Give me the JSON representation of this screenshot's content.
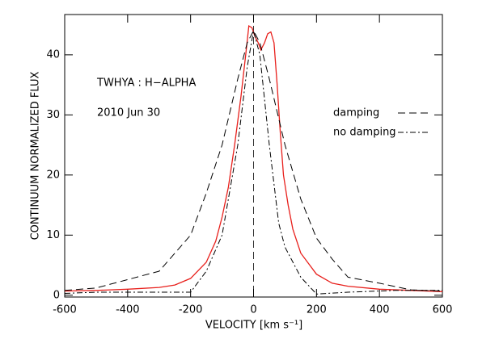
{
  "chart_data": {
    "type": "line",
    "xlabel": "VELOCITY [km s⁻¹]",
    "ylabel": "CONTINUUM NORMALIZED FLUX",
    "annotations": [
      "TWHYA : H−ALPHA",
      "2010 Jun 30"
    ],
    "xlim": [
      -600,
      600
    ],
    "ylim": [
      -0.3,
      46.7
    ],
    "xticks": [
      -600,
      -400,
      -200,
      0,
      200,
      400,
      600
    ],
    "yticks": [
      0,
      10,
      20,
      30,
      40
    ],
    "vlines": [
      0
    ],
    "series": [
      {
        "color": "#e8201c",
        "dash": "solid",
        "x": [
          -600,
          -500,
          -400,
          -300,
          -250,
          -200,
          -150,
          -120,
          -100,
          -80,
          -60,
          -40,
          -25,
          -15,
          -5,
          5,
          15,
          23,
          35,
          45,
          55,
          65,
          75,
          85,
          95,
          110,
          125,
          150,
          200,
          250,
          300,
          400,
          500,
          600
        ],
        "values": [
          0.7,
          0.8,
          1.0,
          1.3,
          1.7,
          2.8,
          5.5,
          9,
          13,
          18,
          25,
          33,
          40,
          44.8,
          44.5,
          43,
          42,
          40.8,
          42,
          43.5,
          43.8,
          42,
          35,
          27,
          20,
          15,
          11,
          7,
          3.5,
          2,
          1.5,
          1,
          0.8,
          0.6
        ]
      },
      {
        "name": "damping",
        "color": "#000000",
        "dash": "dashed",
        "x": [
          -600,
          -500,
          -400,
          -300,
          -200,
          -150,
          -100,
          -50,
          -20,
          0,
          20,
          50,
          100,
          150,
          200,
          250,
          300,
          400,
          500,
          600
        ],
        "values": [
          0.8,
          1.2,
          2.6,
          4,
          10,
          17,
          25,
          36,
          42,
          44,
          42,
          36,
          25,
          16,
          9.5,
          6,
          3,
          2,
          0.9,
          0.7
        ]
      },
      {
        "name": "no damping",
        "color": "#000000",
        "dash": "dashdot",
        "x": [
          -600,
          -500,
          -200,
          -150,
          -100,
          -50,
          -20,
          0,
          20,
          50,
          80,
          100,
          150,
          200,
          300,
          450,
          600
        ],
        "values": [
          0.3,
          0.5,
          0.5,
          4,
          10,
          25,
          38,
          44,
          40,
          25,
          12,
          8,
          3,
          0.2,
          0.5,
          0.8,
          0.8
        ]
      }
    ]
  }
}
